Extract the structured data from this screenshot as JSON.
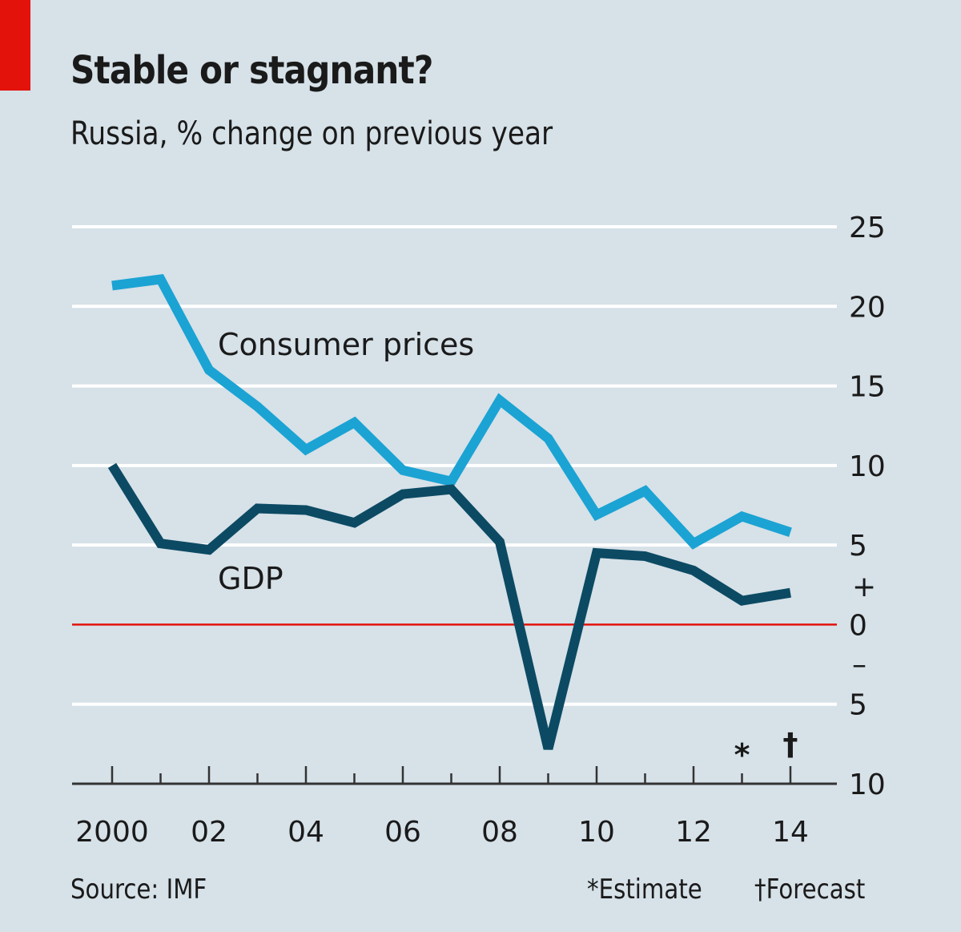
{
  "header": {
    "title": "Stable or stagnant?",
    "subtitle": "Russia, % change on previous year"
  },
  "footer": {
    "source": "Source: IMF",
    "estimate_note": "*Estimate",
    "forecast_note": "†Forecast"
  },
  "colors": {
    "background": "#d6e1e8",
    "accent_red": "#e3120b",
    "consumer_prices": "#1ba3d3",
    "gdp": "#0c4a63",
    "gridline": "#ffffff",
    "zero_line": "#e3120b"
  },
  "chart_data": {
    "type": "line",
    "title": "Stable or stagnant?",
    "subtitle": "Russia, % change on previous year",
    "xlabel": "",
    "ylabel": "% change on previous year",
    "x": [
      2000,
      2001,
      2002,
      2003,
      2004,
      2005,
      2006,
      2007,
      2008,
      2009,
      2010,
      2011,
      2012,
      2013,
      2014
    ],
    "x_tick_labels": [
      "2000",
      "02",
      "04",
      "06",
      "08",
      "10",
      "12",
      "14"
    ],
    "x_tick_values": [
      2000,
      2002,
      2004,
      2006,
      2008,
      2010,
      2012,
      2014
    ],
    "y_tick_values": [
      25,
      20,
      15,
      10,
      5,
      0,
      -5,
      -10
    ],
    "y_tick_labels": [
      "25",
      "20",
      "15",
      "10",
      "5",
      "0",
      "5",
      "10"
    ],
    "y_sign_markers": {
      "plus": "+",
      "minus": "–"
    },
    "ylim": [
      -10,
      25
    ],
    "xlim": [
      2000,
      2014
    ],
    "grid": true,
    "y_axis_side": "right",
    "series": [
      {
        "name": "Consumer prices",
        "label": "Consumer prices",
        "values": [
          21.3,
          21.7,
          16.0,
          13.7,
          11.0,
          12.7,
          9.7,
          9.0,
          14.1,
          11.7,
          6.9,
          8.4,
          5.1,
          6.8,
          5.8
        ]
      },
      {
        "name": "GDP",
        "label": "GDP",
        "values": [
          10.0,
          5.1,
          4.7,
          7.3,
          7.2,
          6.4,
          8.2,
          8.5,
          5.2,
          -7.8,
          4.5,
          4.3,
          3.4,
          1.5,
          2.0
        ]
      }
    ],
    "annotations": [
      {
        "x": 2013,
        "symbol": "*",
        "meaning": "Estimate"
      },
      {
        "x": 2014,
        "symbol": "†",
        "meaning": "Forecast"
      }
    ]
  }
}
